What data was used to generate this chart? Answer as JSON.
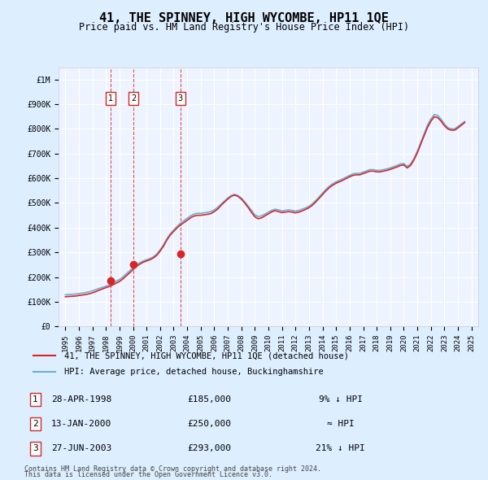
{
  "title": "41, THE SPINNEY, HIGH WYCOMBE, HP11 1QE",
  "subtitle": "Price paid vs. HM Land Registry's House Price Index (HPI)",
  "legend_entry1": "41, THE SPINNEY, HIGH WYCOMBE, HP11 1QE (detached house)",
  "legend_entry2": "HPI: Average price, detached house, Buckinghamshire",
  "footer1": "Contains HM Land Registry data © Crown copyright and database right 2024.",
  "footer2": "This data is licensed under the Open Government Licence v3.0.",
  "sales": [
    {
      "num": 1,
      "date": "28-APR-1998",
      "price": 185000,
      "year": 1998.32,
      "label": "9% ↓ HPI"
    },
    {
      "num": 2,
      "date": "13-JAN-2000",
      "price": 250000,
      "year": 2000.04,
      "label": "≈ HPI"
    },
    {
      "num": 3,
      "date": "27-JUN-2003",
      "price": 293000,
      "year": 2003.49,
      "label": "21% ↓ HPI"
    }
  ],
  "hpi_color": "#6baed6",
  "price_color": "#d62728",
  "sale_marker_color": "#d62728",
  "vline_color": "#d62728",
  "background_color": "#ddeeff",
  "plot_bg_color": "#eef4ff",
  "grid_color": "#ffffff",
  "ylim": [
    0,
    1050000
  ],
  "yticks": [
    0,
    100000,
    200000,
    300000,
    400000,
    500000,
    600000,
    700000,
    800000,
    900000,
    1000000
  ],
  "ytick_labels": [
    "£0",
    "£100K",
    "£200K",
    "£300K",
    "£400K",
    "£500K",
    "£600K",
    "£700K",
    "£800K",
    "£900K",
    "£1M"
  ],
  "xlim_start": 1994.5,
  "xlim_end": 2025.5,
  "hpi_data": {
    "years": [
      1995.0,
      1995.25,
      1995.5,
      1995.75,
      1996.0,
      1996.25,
      1996.5,
      1996.75,
      1997.0,
      1997.25,
      1997.5,
      1997.75,
      1998.0,
      1998.25,
      1998.5,
      1998.75,
      1999.0,
      1999.25,
      1999.5,
      1999.75,
      2000.0,
      2000.25,
      2000.5,
      2000.75,
      2001.0,
      2001.25,
      2001.5,
      2001.75,
      2002.0,
      2002.25,
      2002.5,
      2002.75,
      2003.0,
      2003.25,
      2003.5,
      2003.75,
      2004.0,
      2004.25,
      2004.5,
      2004.75,
      2005.0,
      2005.25,
      2005.5,
      2005.75,
      2006.0,
      2006.25,
      2006.5,
      2006.75,
      2007.0,
      2007.25,
      2007.5,
      2007.75,
      2008.0,
      2008.25,
      2008.5,
      2008.75,
      2009.0,
      2009.25,
      2009.5,
      2009.75,
      2010.0,
      2010.25,
      2010.5,
      2010.75,
      2011.0,
      2011.25,
      2011.5,
      2011.75,
      2012.0,
      2012.25,
      2012.5,
      2012.75,
      2013.0,
      2013.25,
      2013.5,
      2013.75,
      2014.0,
      2014.25,
      2014.5,
      2014.75,
      2015.0,
      2015.25,
      2015.5,
      2015.75,
      2016.0,
      2016.25,
      2016.5,
      2016.75,
      2017.0,
      2017.25,
      2017.5,
      2017.75,
      2018.0,
      2018.25,
      2018.5,
      2018.75,
      2019.0,
      2019.25,
      2019.5,
      2019.75,
      2020.0,
      2020.25,
      2020.5,
      2020.75,
      2021.0,
      2021.25,
      2021.5,
      2021.75,
      2022.0,
      2022.25,
      2022.5,
      2022.75,
      2023.0,
      2023.25,
      2023.5,
      2023.75,
      2024.0,
      2024.25,
      2024.5
    ],
    "values": [
      128000,
      129000,
      130000,
      131000,
      133000,
      135000,
      137000,
      140000,
      144000,
      149000,
      154000,
      158000,
      163000,
      168000,
      175000,
      183000,
      190000,
      200000,
      213000,
      225000,
      238000,
      250000,
      258000,
      265000,
      270000,
      275000,
      282000,
      293000,
      310000,
      330000,
      355000,
      375000,
      390000,
      405000,
      418000,
      428000,
      438000,
      448000,
      455000,
      458000,
      458000,
      460000,
      462000,
      465000,
      472000,
      482000,
      495000,
      508000,
      520000,
      530000,
      535000,
      530000,
      520000,
      505000,
      488000,
      470000,
      452000,
      445000,
      448000,
      455000,
      463000,
      470000,
      475000,
      472000,
      468000,
      470000,
      472000,
      470000,
      467000,
      470000,
      475000,
      480000,
      487000,
      497000,
      510000,
      525000,
      540000,
      555000,
      568000,
      578000,
      586000,
      592000,
      598000,
      605000,
      612000,
      618000,
      620000,
      620000,
      625000,
      630000,
      635000,
      635000,
      632000,
      632000,
      635000,
      638000,
      642000,
      647000,
      652000,
      658000,
      660000,
      648000,
      658000,
      680000,
      710000,
      745000,
      780000,
      815000,
      840000,
      858000,
      855000,
      840000,
      820000,
      805000,
      800000,
      800000,
      810000,
      820000,
      830000
    ]
  },
  "price_data": {
    "years": [
      1995.0,
      1995.25,
      1995.5,
      1995.75,
      1996.0,
      1996.25,
      1996.5,
      1996.75,
      1997.0,
      1997.25,
      1997.5,
      1997.75,
      1998.0,
      1998.25,
      1998.5,
      1998.75,
      1999.0,
      1999.25,
      1999.5,
      1999.75,
      2000.0,
      2000.25,
      2000.5,
      2000.75,
      2001.0,
      2001.25,
      2001.5,
      2001.75,
      2002.0,
      2002.25,
      2002.5,
      2002.75,
      2003.0,
      2003.25,
      2003.5,
      2003.75,
      2004.0,
      2004.25,
      2004.5,
      2004.75,
      2005.0,
      2005.25,
      2005.5,
      2005.75,
      2006.0,
      2006.25,
      2006.5,
      2006.75,
      2007.0,
      2007.25,
      2007.5,
      2007.75,
      2008.0,
      2008.25,
      2008.5,
      2008.75,
      2009.0,
      2009.25,
      2009.5,
      2009.75,
      2010.0,
      2010.25,
      2010.5,
      2010.75,
      2011.0,
      2011.25,
      2011.5,
      2011.75,
      2012.0,
      2012.25,
      2012.5,
      2012.75,
      2013.0,
      2013.25,
      2013.5,
      2013.75,
      2014.0,
      2014.25,
      2014.5,
      2014.75,
      2015.0,
      2015.25,
      2015.5,
      2015.75,
      2016.0,
      2016.25,
      2016.5,
      2016.75,
      2017.0,
      2017.25,
      2017.5,
      2017.75,
      2018.0,
      2018.25,
      2018.5,
      2018.75,
      2019.0,
      2019.25,
      2019.5,
      2019.75,
      2020.0,
      2020.25,
      2020.5,
      2020.75,
      2021.0,
      2021.25,
      2021.5,
      2021.75,
      2022.0,
      2022.25,
      2022.5,
      2022.75,
      2023.0,
      2023.25,
      2023.5,
      2023.75,
      2024.0,
      2024.25,
      2024.5
    ],
    "values": [
      120000,
      121000,
      122000,
      123000,
      125000,
      127000,
      129000,
      132000,
      136000,
      141000,
      147000,
      152000,
      157000,
      162000,
      168000,
      175000,
      182000,
      192000,
      205000,
      217000,
      230000,
      243000,
      252000,
      260000,
      265000,
      270000,
      277000,
      288000,
      305000,
      325000,
      350000,
      370000,
      385000,
      399000,
      411000,
      420000,
      430000,
      440000,
      447000,
      450000,
      450000,
      452000,
      454000,
      457000,
      465000,
      475000,
      490000,
      503000,
      516000,
      527000,
      532000,
      527000,
      516000,
      500000,
      482000,
      462000,
      444000,
      436000,
      440000,
      448000,
      456000,
      464000,
      469000,
      465000,
      461000,
      463000,
      465000,
      463000,
      460000,
      463000,
      468000,
      474000,
      481000,
      491000,
      504000,
      519000,
      534000,
      549000,
      562000,
      572000,
      580000,
      586000,
      592000,
      599000,
      606000,
      612000,
      614000,
      614000,
      619000,
      624000,
      629000,
      629000,
      626000,
      626000,
      629000,
      632000,
      636000,
      641000,
      646000,
      652000,
      654000,
      642000,
      652000,
      674000,
      703000,
      738000,
      772000,
      806000,
      831000,
      849000,
      846000,
      832000,
      813000,
      800000,
      795000,
      795000,
      804000,
      815000,
      826000
    ]
  }
}
